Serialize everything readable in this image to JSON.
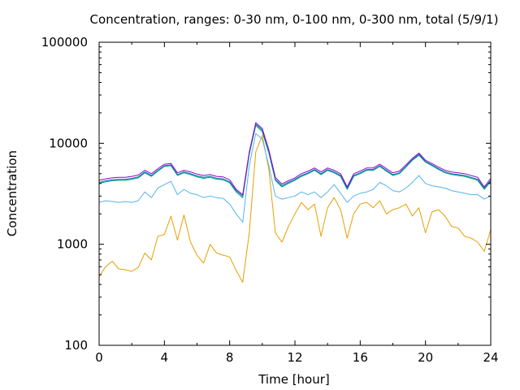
{
  "chart_data": {
    "type": "line",
    "title": "Concentration, ranges: 0-30 nm, 0-100 nm, 0-300 nm, total (5/9/1)",
    "xlabel": "Time [hour]",
    "ylabel": "Concentration",
    "xlim": [
      0,
      24
    ],
    "ylim": [
      100,
      100000
    ],
    "yscale": "log",
    "grid": false,
    "legend": "none",
    "x_ticks": [
      0,
      4,
      8,
      12,
      16,
      20,
      24
    ],
    "y_ticks": [
      100,
      1000,
      10000,
      100000
    ],
    "x_tick_labels": [
      "0",
      "4",
      "8",
      "12",
      "16",
      "20",
      "24"
    ],
    "y_tick_labels": [
      "100",
      "1000",
      "10000",
      "100000"
    ],
    "series": [
      {
        "color": "#e69f00",
        "x": [
          0,
          0.4,
          0.8,
          1.2,
          1.6,
          2,
          2.4,
          2.8,
          3.2,
          3.6,
          4,
          4.4,
          4.8,
          5.2,
          5.6,
          6,
          6.4,
          6.8,
          7.2,
          7.6,
          8,
          8.4,
          8.8,
          9.2,
          9.6,
          10,
          10.4,
          10.8,
          11.2,
          11.6,
          12,
          12.4,
          12.8,
          13.2,
          13.6,
          14,
          14.4,
          14.8,
          15.2,
          15.6,
          16,
          16.4,
          16.8,
          17.2,
          17.6,
          18,
          18.4,
          18.8,
          19.2,
          19.6,
          20,
          20.4,
          20.8,
          21.2,
          21.6,
          22,
          22.4,
          22.8,
          23.2,
          23.6,
          24
        ],
        "y": [
          480,
          600,
          680,
          570,
          560,
          540,
          590,
          820,
          700,
          1200,
          1250,
          1900,
          1100,
          1950,
          1050,
          780,
          650,
          1000,
          820,
          780,
          750,
          550,
          420,
          1300,
          8200,
          12000,
          5500,
          1300,
          1050,
          1500,
          2000,
          2600,
          2200,
          2500,
          1200,
          2300,
          2900,
          2200,
          1150,
          2000,
          2500,
          2600,
          2300,
          2700,
          2000,
          2200,
          2300,
          2500,
          1900,
          2300,
          1300,
          2100,
          2200,
          1900,
          1500,
          1450,
          1200,
          1150,
          1050,
          850,
          1400
        ]
      },
      {
        "color": "#56b4e9",
        "x": [
          0,
          0.4,
          0.8,
          1.2,
          1.6,
          2,
          2.4,
          2.8,
          3.2,
          3.6,
          4,
          4.4,
          4.8,
          5.2,
          5.6,
          6,
          6.4,
          6.8,
          7.2,
          7.6,
          8,
          8.4,
          8.8,
          9.2,
          9.6,
          10,
          10.4,
          10.8,
          11.2,
          11.6,
          12,
          12.4,
          12.8,
          13.2,
          13.6,
          14,
          14.4,
          14.8,
          15.2,
          15.6,
          16,
          16.4,
          16.8,
          17.2,
          17.6,
          18,
          18.4,
          18.8,
          19.2,
          19.6,
          20,
          20.4,
          20.8,
          21.2,
          21.6,
          22,
          22.4,
          22.8,
          23.2,
          23.6,
          24
        ],
        "y": [
          2600,
          2700,
          2650,
          2600,
          2650,
          2600,
          2700,
          3300,
          2900,
          3600,
          3900,
          4200,
          3100,
          3500,
          3200,
          3100,
          2900,
          3000,
          2900,
          2850,
          2500,
          2000,
          1650,
          6000,
          12500,
          11000,
          6000,
          3000,
          2800,
          2900,
          3000,
          3300,
          3100,
          3300,
          2900,
          3300,
          3900,
          3200,
          2600,
          3000,
          3200,
          3300,
          3500,
          4100,
          3800,
          3400,
          3300,
          3600,
          4100,
          4800,
          4000,
          3800,
          3700,
          3600,
          3400,
          3300,
          3200,
          3100,
          3100,
          2800,
          3000
        ]
      },
      {
        "color": "#009e73",
        "x": [
          0,
          0.4,
          0.8,
          1.2,
          1.6,
          2,
          2.4,
          2.8,
          3.2,
          3.6,
          4,
          4.4,
          4.8,
          5.2,
          5.6,
          6,
          6.4,
          6.8,
          7.2,
          7.6,
          8,
          8.4,
          8.8,
          9.2,
          9.6,
          10,
          10.4,
          10.8,
          11.2,
          11.6,
          12,
          12.4,
          12.8,
          13.2,
          13.6,
          14,
          14.4,
          14.8,
          15.2,
          15.6,
          16,
          16.4,
          16.8,
          17.2,
          17.6,
          18,
          18.4,
          18.8,
          19.2,
          19.6,
          20,
          20.4,
          20.8,
          21.2,
          21.6,
          22,
          22.4,
          22.8,
          23.2,
          23.6,
          24
        ],
        "y": [
          4000,
          4150,
          4250,
          4300,
          4300,
          4400,
          4550,
          5100,
          4700,
          5300,
          5900,
          6000,
          4800,
          5100,
          4900,
          4650,
          4500,
          4600,
          4400,
          4350,
          4050,
          3300,
          2900,
          7800,
          15000,
          13000,
          8000,
          4300,
          3700,
          4000,
          4300,
          4700,
          5000,
          5400,
          4900,
          5400,
          5100,
          4700,
          3500,
          4700,
          5000,
          5400,
          5400,
          5900,
          5300,
          4800,
          5000,
          5800,
          6800,
          7600,
          6500,
          6000,
          5500,
          5100,
          4900,
          4800,
          4700,
          4500,
          4300,
          3500,
          4200
        ]
      },
      {
        "color": "#0072b2",
        "x": [
          0,
          0.4,
          0.8,
          1.2,
          1.6,
          2,
          2.4,
          2.8,
          3.2,
          3.6,
          4,
          4.4,
          4.8,
          5.2,
          5.6,
          6,
          6.4,
          6.8,
          7.2,
          7.6,
          8,
          8.4,
          8.8,
          9.2,
          9.6,
          10,
          10.4,
          10.8,
          11.2,
          11.6,
          12,
          12.4,
          12.8,
          13.2,
          13.6,
          14,
          14.4,
          14.8,
          15.2,
          15.6,
          16,
          16.4,
          16.8,
          17.2,
          17.6,
          18,
          18.4,
          18.8,
          19.2,
          19.6,
          20,
          20.4,
          20.8,
          21.2,
          21.6,
          22,
          22.4,
          22.8,
          23.2,
          23.6,
          24
        ],
        "y": [
          4100,
          4250,
          4350,
          4400,
          4400,
          4500,
          4650,
          5200,
          4800,
          5400,
          6000,
          6100,
          4900,
          5200,
          5000,
          4750,
          4600,
          4700,
          4500,
          4450,
          4150,
          3400,
          3000,
          8000,
          15500,
          13500,
          8300,
          4400,
          3800,
          4100,
          4400,
          4800,
          5100,
          5500,
          5000,
          5500,
          5200,
          4800,
          3600,
          4800,
          5100,
          5500,
          5500,
          6000,
          5400,
          4900,
          5100,
          5900,
          6900,
          7800,
          6600,
          6100,
          5600,
          5200,
          5000,
          4900,
          4800,
          4600,
          4400,
          3600,
          4300
        ]
      },
      {
        "color": "#9400d3",
        "x": [
          0,
          0.4,
          0.8,
          1.2,
          1.6,
          2,
          2.4,
          2.8,
          3.2,
          3.6,
          4,
          4.4,
          4.8,
          5.2,
          5.6,
          6,
          6.4,
          6.8,
          7.2,
          7.6,
          8,
          8.4,
          8.8,
          9.2,
          9.6,
          10,
          10.4,
          10.8,
          11.2,
          11.6,
          12,
          12.4,
          12.8,
          13.2,
          13.6,
          14,
          14.4,
          14.8,
          15.2,
          15.6,
          16,
          16.4,
          16.8,
          17.2,
          17.6,
          18,
          18.4,
          18.8,
          19.2,
          19.6,
          20,
          20.4,
          20.8,
          21.2,
          21.6,
          22,
          22.4,
          22.8,
          23.2,
          23.6,
          24
        ],
        "y": [
          4300,
          4450,
          4550,
          4600,
          4600,
          4700,
          4850,
          5400,
          5000,
          5600,
          6200,
          6300,
          5100,
          5400,
          5200,
          4950,
          4800,
          4900,
          4700,
          4650,
          4350,
          3500,
          3100,
          8200,
          16000,
          14000,
          8600,
          4600,
          3950,
          4250,
          4550,
          5000,
          5300,
          5700,
          5200,
          5700,
          5400,
          5000,
          3700,
          5000,
          5300,
          5700,
          5700,
          6200,
          5600,
          5100,
          5300,
          6100,
          7100,
          8000,
          6800,
          6300,
          5800,
          5400,
          5200,
          5100,
          5000,
          4800,
          4600,
          3700,
          4500
        ]
      }
    ]
  }
}
